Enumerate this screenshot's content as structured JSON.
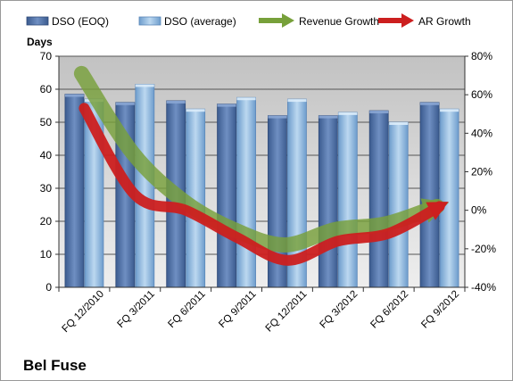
{
  "chart_data": {
    "type": "bar",
    "title": "Bel Fuse",
    "ylabel": "Days",
    "ylim": [
      0,
      70
    ],
    "yticks": [
      0,
      10,
      20,
      30,
      40,
      50,
      60,
      70
    ],
    "y2lim": [
      -40,
      80
    ],
    "y2ticks": [
      -40,
      -20,
      0,
      20,
      40,
      60,
      80
    ],
    "y2tick_labels": [
      "-40%",
      "-20%",
      "0%",
      "20%",
      "40%",
      "60%",
      "80%"
    ],
    "grid": true,
    "legend_position": "top",
    "categories": [
      "FQ 12/2010",
      "FQ 3/2011",
      "FQ 6/2011",
      "FQ 9/2011",
      "FQ 12/2011",
      "FQ 3/2012",
      "FQ 6/2012",
      "FQ 9/2012"
    ],
    "series": [
      {
        "name": "DSO (EOQ)",
        "type": "bar",
        "axis": "left",
        "color": "#4f6fa5",
        "values": [
          58.5,
          56,
          56.5,
          55.5,
          52,
          52,
          53.5,
          56
        ]
      },
      {
        "name": "DSO (average)",
        "type": "bar",
        "axis": "left",
        "color": "#8fb8de",
        "values": [
          57,
          61.5,
          54,
          57.5,
          57,
          53,
          50,
          54
        ]
      },
      {
        "name": "Revenue Growth",
        "type": "line",
        "axis": "right",
        "color": "#77a03a",
        "values": [
          71,
          30,
          5,
          -10,
          -18,
          -10,
          -7,
          2
        ]
      },
      {
        "name": "AR Growth",
        "type": "line",
        "axis": "right",
        "color": "#cc1f1f",
        "values": [
          53,
          8,
          0,
          -14,
          -26,
          -16,
          -12,
          2
        ]
      }
    ]
  }
}
